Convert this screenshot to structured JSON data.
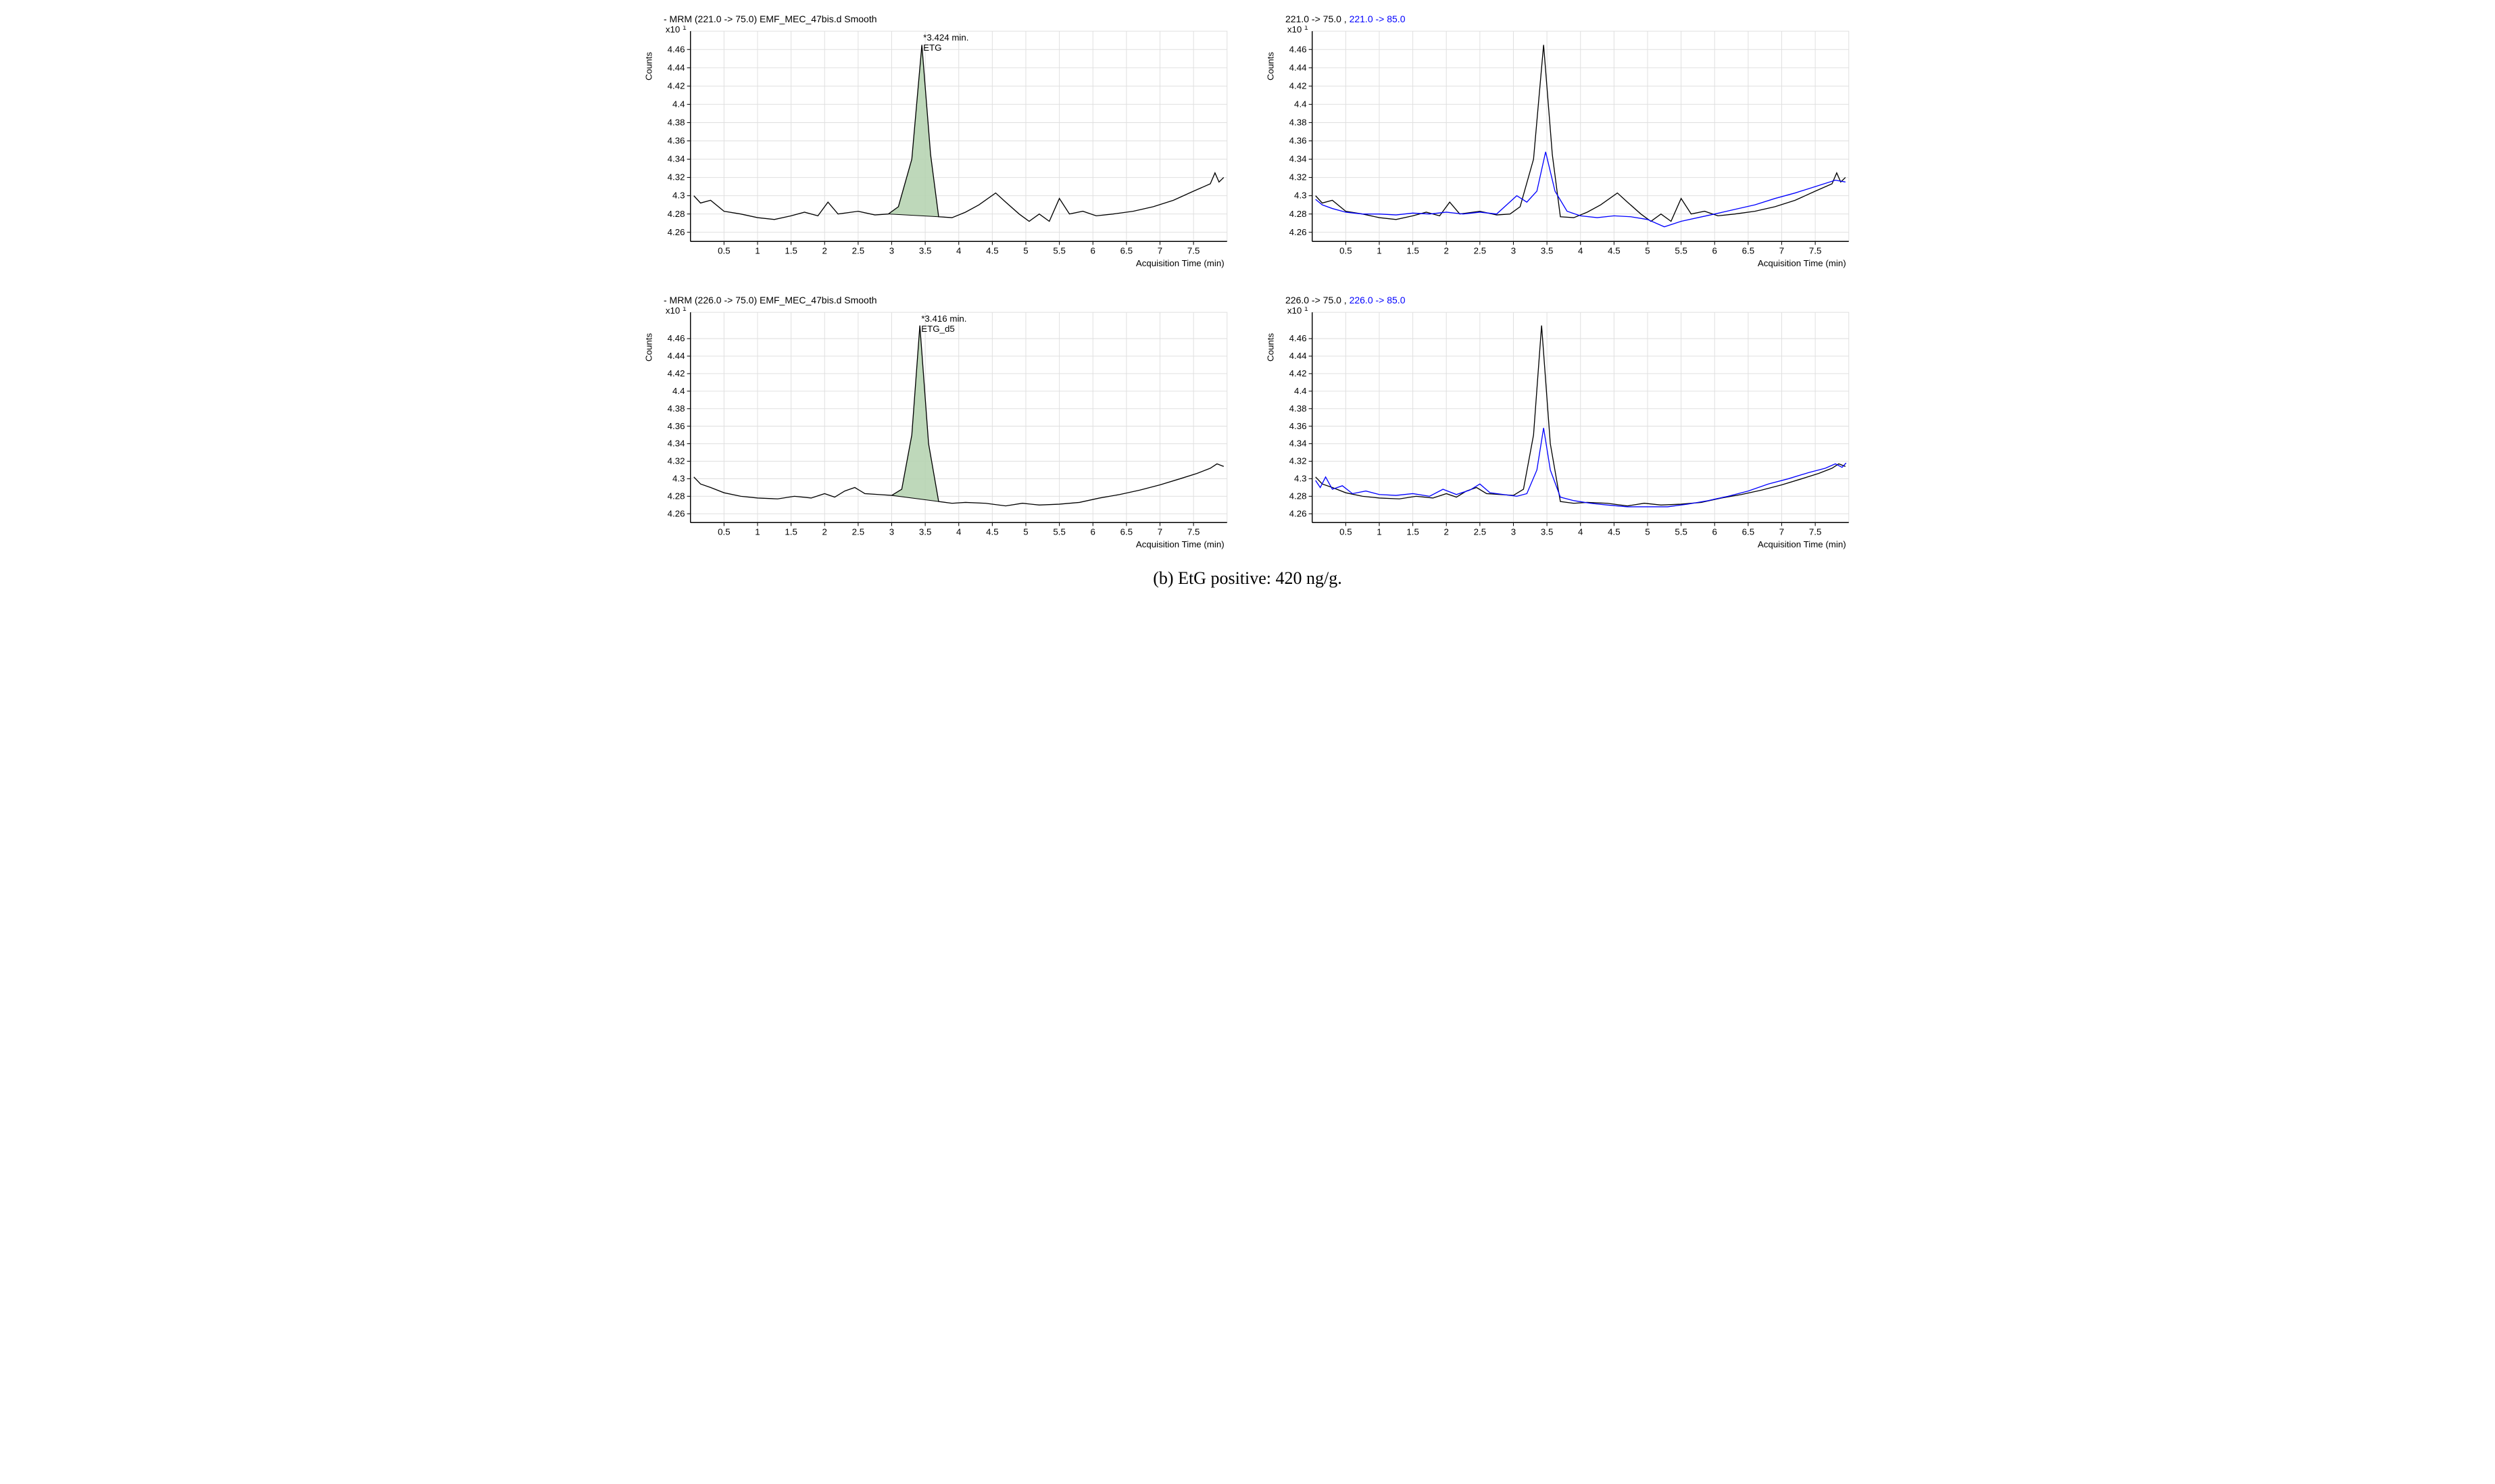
{
  "caption": "(b) EtG positive: 420 ng/g.",
  "layout": {
    "rows": 2,
    "cols": 2,
    "aspect": 2.4,
    "background": "#ffffff",
    "grid_color": "#e0e0e0",
    "axis_color": "#000000",
    "text_color": "#000000",
    "font_family": "Arial",
    "title_fontsize": 14,
    "tick_fontsize": 13,
    "axis_label_fontsize": 13,
    "yexp_fontsize": 13,
    "peak_fill": "#b7d4b2",
    "peak_fill_opacity": 0.9,
    "line_width": 1.3,
    "series_colors": {
      "black": "#000000",
      "blue": "#0000ff"
    }
  },
  "common_axes": {
    "xlim": [
      0,
      8
    ],
    "xtick_step": 0.5,
    "xlabel": "Acquisition Time (min)",
    "ylabel": "Counts",
    "y_exponent_label": "x10 1"
  },
  "panels": [
    {
      "id": "top-left",
      "title_plain": "- MRM (221.0 -> 75.0) EMF_MEC_47bis.d  Smooth",
      "ylim": [
        4.25,
        4.48
      ],
      "yticks": [
        4.26,
        4.28,
        4.3,
        4.32,
        4.34,
        4.36,
        4.38,
        4.4,
        4.42,
        4.44,
        4.46
      ],
      "peak": {
        "label1": "*3.424 min.",
        "label2": "ETG",
        "apex_x": 3.45,
        "apex_y": 4.465,
        "base_left_x": 2.95,
        "base_right_x": 3.7
      },
      "series": [
        {
          "color": "black",
          "points": [
            [
              0.05,
              4.3
            ],
            [
              0.15,
              4.292
            ],
            [
              0.3,
              4.295
            ],
            [
              0.5,
              4.283
            ],
            [
              0.75,
              4.28
            ],
            [
              1.0,
              4.276
            ],
            [
              1.25,
              4.274
            ],
            [
              1.5,
              4.278
            ],
            [
              1.7,
              4.282
            ],
            [
              1.9,
              4.278
            ],
            [
              2.05,
              4.293
            ],
            [
              2.2,
              4.28
            ],
            [
              2.5,
              4.283
            ],
            [
              2.75,
              4.279
            ],
            [
              2.95,
              4.28
            ],
            [
              3.1,
              4.288
            ],
            [
              3.3,
              4.34
            ],
            [
              3.45,
              4.465
            ],
            [
              3.58,
              4.345
            ],
            [
              3.7,
              4.277
            ],
            [
              3.9,
              4.276
            ],
            [
              4.1,
              4.282
            ],
            [
              4.3,
              4.29
            ],
            [
              4.55,
              4.303
            ],
            [
              4.7,
              4.293
            ],
            [
              4.9,
              4.28
            ],
            [
              5.05,
              4.272
            ],
            [
              5.2,
              4.28
            ],
            [
              5.35,
              4.272
            ],
            [
              5.5,
              4.297
            ],
            [
              5.65,
              4.28
            ],
            [
              5.85,
              4.283
            ],
            [
              6.05,
              4.278
            ],
            [
              6.3,
              4.28
            ],
            [
              6.6,
              4.283
            ],
            [
              6.9,
              4.288
            ],
            [
              7.2,
              4.295
            ],
            [
              7.5,
              4.305
            ],
            [
              7.75,
              4.313
            ],
            [
              7.82,
              4.325
            ],
            [
              7.88,
              4.315
            ],
            [
              7.95,
              4.32
            ]
          ]
        }
      ]
    },
    {
      "id": "top-right",
      "title_parts": [
        {
          "text": "221.0 -> 75.0 , ",
          "color": "#000000"
        },
        {
          "text": "221.0 -> 85.0",
          "color": "#0000ff"
        }
      ],
      "ylim": [
        4.25,
        4.48
      ],
      "yticks": [
        4.26,
        4.28,
        4.3,
        4.32,
        4.34,
        4.36,
        4.38,
        4.4,
        4.42,
        4.44,
        4.46
      ],
      "series": [
        {
          "color": "black",
          "points": [
            [
              0.05,
              4.3
            ],
            [
              0.15,
              4.292
            ],
            [
              0.3,
              4.295
            ],
            [
              0.5,
              4.283
            ],
            [
              0.75,
              4.28
            ],
            [
              1.0,
              4.276
            ],
            [
              1.25,
              4.274
            ],
            [
              1.5,
              4.278
            ],
            [
              1.7,
              4.282
            ],
            [
              1.9,
              4.278
            ],
            [
              2.05,
              4.293
            ],
            [
              2.2,
              4.28
            ],
            [
              2.5,
              4.283
            ],
            [
              2.75,
              4.279
            ],
            [
              2.95,
              4.28
            ],
            [
              3.1,
              4.288
            ],
            [
              3.3,
              4.34
            ],
            [
              3.45,
              4.465
            ],
            [
              3.58,
              4.345
            ],
            [
              3.7,
              4.277
            ],
            [
              3.9,
              4.276
            ],
            [
              4.1,
              4.282
            ],
            [
              4.3,
              4.29
            ],
            [
              4.55,
              4.303
            ],
            [
              4.7,
              4.293
            ],
            [
              4.9,
              4.28
            ],
            [
              5.05,
              4.272
            ],
            [
              5.2,
              4.28
            ],
            [
              5.35,
              4.272
            ],
            [
              5.5,
              4.297
            ],
            [
              5.65,
              4.28
            ],
            [
              5.85,
              4.283
            ],
            [
              6.05,
              4.278
            ],
            [
              6.3,
              4.28
            ],
            [
              6.6,
              4.283
            ],
            [
              6.9,
              4.288
            ],
            [
              7.2,
              4.295
            ],
            [
              7.5,
              4.305
            ],
            [
              7.75,
              4.313
            ],
            [
              7.82,
              4.325
            ],
            [
              7.88,
              4.315
            ],
            [
              7.95,
              4.32
            ]
          ]
        },
        {
          "color": "blue",
          "points": [
            [
              0.05,
              4.296
            ],
            [
              0.15,
              4.29
            ],
            [
              0.3,
              4.286
            ],
            [
              0.5,
              4.282
            ],
            [
              0.75,
              4.28
            ],
            [
              1.0,
              4.28
            ],
            [
              1.25,
              4.279
            ],
            [
              1.5,
              4.281
            ],
            [
              1.75,
              4.28
            ],
            [
              2.0,
              4.282
            ],
            [
              2.25,
              4.28
            ],
            [
              2.5,
              4.282
            ],
            [
              2.75,
              4.28
            ],
            [
              2.9,
              4.29
            ],
            [
              3.05,
              4.3
            ],
            [
              3.2,
              4.293
            ],
            [
              3.35,
              4.305
            ],
            [
              3.48,
              4.348
            ],
            [
              3.62,
              4.305
            ],
            [
              3.8,
              4.283
            ],
            [
              4.0,
              4.278
            ],
            [
              4.25,
              4.276
            ],
            [
              4.5,
              4.278
            ],
            [
              4.75,
              4.277
            ],
            [
              5.0,
              4.274
            ],
            [
              5.25,
              4.266
            ],
            [
              5.5,
              4.272
            ],
            [
              5.75,
              4.276
            ],
            [
              6.0,
              4.28
            ],
            [
              6.3,
              4.285
            ],
            [
              6.6,
              4.29
            ],
            [
              6.9,
              4.297
            ],
            [
              7.2,
              4.303
            ],
            [
              7.5,
              4.31
            ],
            [
              7.8,
              4.317
            ],
            [
              7.95,
              4.315
            ]
          ]
        }
      ]
    },
    {
      "id": "bottom-left",
      "title_plain": "- MRM (226.0 -> 75.0) EMF_MEC_47bis.d  Smooth",
      "ylim": [
        4.25,
        4.49
      ],
      "yticks": [
        4.26,
        4.28,
        4.3,
        4.32,
        4.34,
        4.36,
        4.38,
        4.4,
        4.42,
        4.44,
        4.46
      ],
      "peak": {
        "label1": "*3.416 min.",
        "label2": "ETG_d5",
        "apex_x": 3.42,
        "apex_y": 4.475,
        "base_left_x": 3.0,
        "base_right_x": 3.7
      },
      "series": [
        {
          "color": "black",
          "points": [
            [
              0.05,
              4.302
            ],
            [
              0.15,
              4.294
            ],
            [
              0.3,
              4.29
            ],
            [
              0.5,
              4.284
            ],
            [
              0.75,
              4.28
            ],
            [
              1.0,
              4.278
            ],
            [
              1.3,
              4.277
            ],
            [
              1.55,
              4.28
            ],
            [
              1.8,
              4.278
            ],
            [
              2.0,
              4.283
            ],
            [
              2.15,
              4.279
            ],
            [
              2.3,
              4.286
            ],
            [
              2.45,
              4.29
            ],
            [
              2.6,
              4.283
            ],
            [
              2.8,
              4.282
            ],
            [
              3.0,
              4.281
            ],
            [
              3.15,
              4.288
            ],
            [
              3.3,
              4.35
            ],
            [
              3.42,
              4.475
            ],
            [
              3.55,
              4.34
            ],
            [
              3.7,
              4.274
            ],
            [
              3.9,
              4.272
            ],
            [
              4.1,
              4.273
            ],
            [
              4.4,
              4.272
            ],
            [
              4.7,
              4.269
            ],
            [
              4.95,
              4.272
            ],
            [
              5.2,
              4.27
            ],
            [
              5.5,
              4.271
            ],
            [
              5.8,
              4.273
            ],
            [
              6.1,
              4.278
            ],
            [
              6.4,
              4.282
            ],
            [
              6.7,
              4.287
            ],
            [
              7.0,
              4.293
            ],
            [
              7.3,
              4.3
            ],
            [
              7.55,
              4.306
            ],
            [
              7.75,
              4.312
            ],
            [
              7.85,
              4.317
            ],
            [
              7.95,
              4.314
            ]
          ]
        }
      ]
    },
    {
      "id": "bottom-right",
      "title_parts": [
        {
          "text": "226.0 -> 75.0 , ",
          "color": "#000000"
        },
        {
          "text": "226.0 -> 85.0",
          "color": "#0000ff"
        }
      ],
      "ylim": [
        4.25,
        4.49
      ],
      "yticks": [
        4.26,
        4.28,
        4.3,
        4.32,
        4.34,
        4.36,
        4.38,
        4.4,
        4.42,
        4.44,
        4.46
      ],
      "series": [
        {
          "color": "black",
          "points": [
            [
              0.05,
              4.302
            ],
            [
              0.15,
              4.294
            ],
            [
              0.3,
              4.29
            ],
            [
              0.5,
              4.284
            ],
            [
              0.75,
              4.28
            ],
            [
              1.0,
              4.278
            ],
            [
              1.3,
              4.277
            ],
            [
              1.55,
              4.28
            ],
            [
              1.8,
              4.278
            ],
            [
              2.0,
              4.283
            ],
            [
              2.15,
              4.279
            ],
            [
              2.3,
              4.286
            ],
            [
              2.45,
              4.29
            ],
            [
              2.6,
              4.283
            ],
            [
              2.8,
              4.282
            ],
            [
              3.0,
              4.281
            ],
            [
              3.15,
              4.288
            ],
            [
              3.3,
              4.35
            ],
            [
              3.42,
              4.475
            ],
            [
              3.55,
              4.34
            ],
            [
              3.7,
              4.274
            ],
            [
              3.9,
              4.272
            ],
            [
              4.1,
              4.273
            ],
            [
              4.4,
              4.272
            ],
            [
              4.7,
              4.269
            ],
            [
              4.95,
              4.272
            ],
            [
              5.2,
              4.27
            ],
            [
              5.5,
              4.271
            ],
            [
              5.8,
              4.273
            ],
            [
              6.1,
              4.278
            ],
            [
              6.4,
              4.282
            ],
            [
              6.7,
              4.287
            ],
            [
              7.0,
              4.293
            ],
            [
              7.3,
              4.3
            ],
            [
              7.55,
              4.306
            ],
            [
              7.75,
              4.312
            ],
            [
              7.85,
              4.317
            ],
            [
              7.95,
              4.314
            ]
          ]
        },
        {
          "color": "blue",
          "points": [
            [
              0.05,
              4.298
            ],
            [
              0.12,
              4.29
            ],
            [
              0.2,
              4.302
            ],
            [
              0.3,
              4.288
            ],
            [
              0.45,
              4.292
            ],
            [
              0.6,
              4.283
            ],
            [
              0.8,
              4.286
            ],
            [
              1.0,
              4.282
            ],
            [
              1.25,
              4.281
            ],
            [
              1.5,
              4.283
            ],
            [
              1.75,
              4.28
            ],
            [
              1.95,
              4.288
            ],
            [
              2.15,
              4.282
            ],
            [
              2.35,
              4.287
            ],
            [
              2.5,
              4.294
            ],
            [
              2.65,
              4.284
            ],
            [
              2.85,
              4.282
            ],
            [
              3.05,
              4.28
            ],
            [
              3.2,
              4.283
            ],
            [
              3.35,
              4.31
            ],
            [
              3.45,
              4.358
            ],
            [
              3.55,
              4.31
            ],
            [
              3.7,
              4.279
            ],
            [
              3.9,
              4.275
            ],
            [
              4.15,
              4.272
            ],
            [
              4.4,
              4.27
            ],
            [
              4.7,
              4.268
            ],
            [
              5.0,
              4.268
            ],
            [
              5.3,
              4.268
            ],
            [
              5.6,
              4.271
            ],
            [
              5.9,
              4.275
            ],
            [
              6.2,
              4.28
            ],
            [
              6.5,
              4.286
            ],
            [
              6.8,
              4.294
            ],
            [
              7.1,
              4.3
            ],
            [
              7.4,
              4.307
            ],
            [
              7.65,
              4.312
            ],
            [
              7.8,
              4.317
            ],
            [
              7.9,
              4.313
            ],
            [
              7.96,
              4.318
            ]
          ]
        }
      ]
    }
  ]
}
